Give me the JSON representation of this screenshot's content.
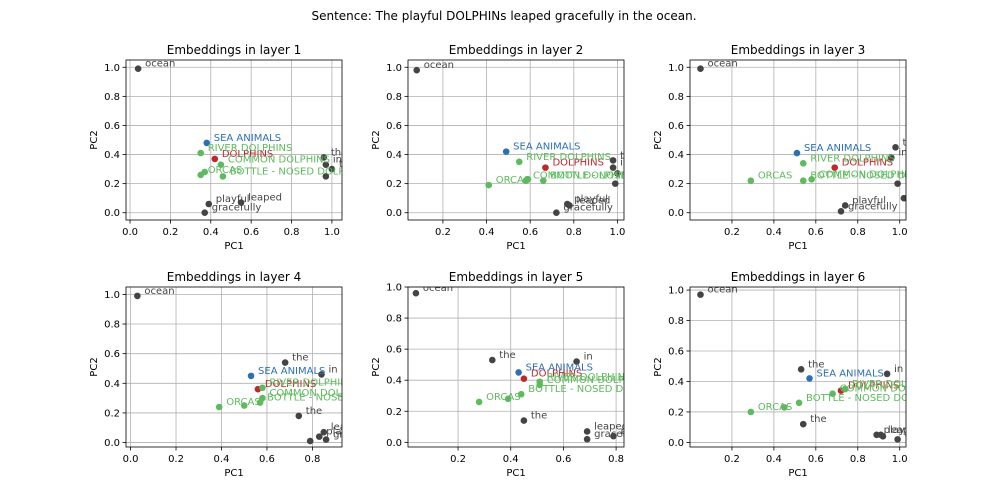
{
  "figure": {
    "suptitle": "Sentence: The playful DOLPHINs leaped gracefully in the ocean."
  },
  "colors": {
    "word": "#444444",
    "focus": "#c0272d",
    "sea_animals": "#2d6fb4",
    "related": "#5dba5d"
  },
  "chart_data": [
    {
      "type": "scatter",
      "title": "Embeddings in layer 1",
      "xlabel": "PC1",
      "ylabel": "PC2",
      "xlim": [
        -0.02,
        1.05
      ],
      "ylim": [
        -0.05,
        1.05
      ],
      "xticks": [
        "0.0",
        "0.2",
        "0.4",
        "0.6",
        "0.8",
        "1.0"
      ],
      "xtick_values": [
        0,
        0.2,
        0.4,
        0.6,
        0.8,
        1.0
      ],
      "yticks": [
        "0.0",
        "0.2",
        "0.4",
        "0.6",
        "0.8",
        "1.0"
      ],
      "ytick_values": [
        0,
        0.2,
        0.4,
        0.6,
        0.8,
        1.0
      ],
      "grid": true,
      "points": [
        {
          "label": "ocean",
          "group": "word",
          "x": 0.04,
          "y": 0.99
        },
        {
          "label": "the",
          "group": "word",
          "x": 0.96,
          "y": 0.38
        },
        {
          "label": "in",
          "group": "word",
          "x": 0.97,
          "y": 0.33
        },
        {
          "label": "the",
          "group": "word",
          "x": 1.0,
          "y": 0.3
        },
        {
          "label": "",
          "group": "word",
          "x": 0.97,
          "y": 0.25
        },
        {
          "label": "playful",
          "group": "word",
          "x": 0.39,
          "y": 0.06
        },
        {
          "label": "leaped",
          "group": "word",
          "x": 0.55,
          "y": 0.07
        },
        {
          "label": "gracefully",
          "group": "word",
          "x": 0.37,
          "y": 0.0
        },
        {
          "label": "SEA ANIMALS",
          "group": "sea_animals",
          "x": 0.38,
          "y": 0.48
        },
        {
          "label": "DOLPHINS",
          "group": "focus",
          "x": 0.42,
          "y": 0.37
        },
        {
          "label": "RIVER DOLPHINS",
          "group": "related",
          "x": 0.35,
          "y": 0.41
        },
        {
          "label": "COMMON DOLPHINS",
          "group": "related",
          "x": 0.45,
          "y": 0.33
        },
        {
          "label": "ORCAS",
          "group": "related",
          "x": 0.35,
          "y": 0.26
        },
        {
          "label": "",
          "group": "related",
          "x": 0.37,
          "y": 0.28
        },
        {
          "label": "BOTTLE - NOSED DOLPHINS",
          "group": "related",
          "x": 0.46,
          "y": 0.25
        }
      ]
    },
    {
      "type": "scatter",
      "title": "Embeddings in layer 2",
      "xlabel": "PC1",
      "ylabel": "PC2",
      "xlim": [
        0.04,
        1.03
      ],
      "ylim": [
        -0.05,
        1.05
      ],
      "xticks": [
        "0.2",
        "0.4",
        "0.6",
        "0.8",
        "1.0"
      ],
      "xtick_values": [
        0.2,
        0.4,
        0.6,
        0.8,
        1.0
      ],
      "yticks": [
        "0.0",
        "0.2",
        "0.4",
        "0.6",
        "0.8",
        "1.0"
      ],
      "ytick_values": [
        0,
        0.2,
        0.4,
        0.6,
        0.8,
        1.0
      ],
      "grid": true,
      "points": [
        {
          "label": "ocean",
          "group": "word",
          "x": 0.08,
          "y": 0.98
        },
        {
          "label": "the",
          "group": "word",
          "x": 0.98,
          "y": 0.36
        },
        {
          "label": "in",
          "group": "word",
          "x": 0.98,
          "y": 0.31
        },
        {
          "label": "the",
          "group": "word",
          "x": 1.0,
          "y": 0.27
        },
        {
          "label": "",
          "group": "word",
          "x": 0.99,
          "y": 0.2
        },
        {
          "label": "playful",
          "group": "word",
          "x": 0.77,
          "y": 0.06
        },
        {
          "label": "leaped",
          "group": "word",
          "x": 0.78,
          "y": 0.05
        },
        {
          "label": "gracefully",
          "group": "word",
          "x": 0.72,
          "y": 0.0
        },
        {
          "label": "SEA ANIMALS",
          "group": "sea_animals",
          "x": 0.49,
          "y": 0.42
        },
        {
          "label": "DOLPHINS",
          "group": "focus",
          "x": 0.67,
          "y": 0.31
        },
        {
          "label": "RIVER DOLPHINS",
          "group": "related",
          "x": 0.55,
          "y": 0.35
        },
        {
          "label": "COMMON DOLPHINS",
          "group": "related",
          "x": 0.58,
          "y": 0.22
        },
        {
          "label": "ORCAS",
          "group": "related",
          "x": 0.41,
          "y": 0.19
        },
        {
          "label": "",
          "group": "related",
          "x": 0.59,
          "y": 0.23
        },
        {
          "label": "BOTTLE - NOSED DOLPHINS",
          "group": "related",
          "x": 0.66,
          "y": 0.22
        }
      ]
    },
    {
      "type": "scatter",
      "title": "Embeddings in layer 3",
      "xlabel": "PC1",
      "ylabel": "PC2",
      "xlim": [
        0.0,
        1.03
      ],
      "ylim": [
        -0.05,
        1.05
      ],
      "xticks": [
        "0.2",
        "0.4",
        "0.6",
        "0.8",
        "1.0"
      ],
      "xtick_values": [
        0.2,
        0.4,
        0.6,
        0.8,
        1.0
      ],
      "yticks": [
        "0.0",
        "0.2",
        "0.4",
        "0.6",
        "0.8",
        "1.0"
      ],
      "ytick_values": [
        0,
        0.2,
        0.4,
        0.6,
        0.8,
        1.0
      ],
      "grid": true,
      "points": [
        {
          "label": "ocean",
          "group": "word",
          "x": 0.05,
          "y": 0.99
        },
        {
          "label": "the",
          "group": "word",
          "x": 0.98,
          "y": 0.45
        },
        {
          "label": "in",
          "group": "word",
          "x": 0.96,
          "y": 0.38
        },
        {
          "label": "the",
          "group": "word",
          "x": 0.99,
          "y": 0.2
        },
        {
          "label": "playful",
          "group": "word",
          "x": 0.74,
          "y": 0.05
        },
        {
          "label": "leaped",
          "group": "word",
          "x": 1.02,
          "y": 0.1
        },
        {
          "label": "gracefully",
          "group": "word",
          "x": 0.72,
          "y": 0.01
        },
        {
          "label": "SEA ANIMALS",
          "group": "sea_animals",
          "x": 0.51,
          "y": 0.41
        },
        {
          "label": "DOLPHINS",
          "group": "focus",
          "x": 0.69,
          "y": 0.31
        },
        {
          "label": "RIVER DOLPHINS",
          "group": "related",
          "x": 0.54,
          "y": 0.34
        },
        {
          "label": "ORCAS",
          "group": "related",
          "x": 0.29,
          "y": 0.22
        },
        {
          "label": "BOTTLE - NOSED DOLPHINS",
          "group": "related",
          "x": 0.54,
          "y": 0.22
        },
        {
          "label": "COMMON DOLPHINS",
          "group": "related",
          "x": 0.58,
          "y": 0.23
        }
      ]
    },
    {
      "type": "scatter",
      "title": "Embeddings in layer 4",
      "xlabel": "PC1",
      "ylabel": "PC2",
      "xlim": [
        -0.02,
        0.93
      ],
      "ylim": [
        -0.03,
        1.05
      ],
      "xticks": [
        "0.0",
        "0.2",
        "0.4",
        "0.6",
        "0.8"
      ],
      "xtick_values": [
        0,
        0.2,
        0.4,
        0.6,
        0.8
      ],
      "yticks": [
        "0.0",
        "0.2",
        "0.4",
        "0.6",
        "0.8",
        "1.0"
      ],
      "ytick_values": [
        0,
        0.2,
        0.4,
        0.6,
        0.8,
        1.0
      ],
      "grid": true,
      "points": [
        {
          "label": "ocean",
          "group": "word",
          "x": 0.03,
          "y": 0.99
        },
        {
          "label": "the",
          "group": "word",
          "x": 0.68,
          "y": 0.54
        },
        {
          "label": "in",
          "group": "word",
          "x": 0.84,
          "y": 0.46
        },
        {
          "label": "the",
          "group": "word",
          "x": 0.74,
          "y": 0.18
        },
        {
          "label": "leaped",
          "group": "word",
          "x": 0.85,
          "y": 0.07
        },
        {
          "label": "playful",
          "group": "word",
          "x": 0.83,
          "y": 0.04
        },
        {
          "label": "gracefully",
          "group": "word",
          "x": 0.86,
          "y": 0.02
        },
        {
          "label": "",
          "group": "word",
          "x": 0.79,
          "y": 0.01
        },
        {
          "label": "SEA ANIMALS",
          "group": "sea_animals",
          "x": 0.53,
          "y": 0.45
        },
        {
          "label": "DOLPHINS",
          "group": "focus",
          "x": 0.56,
          "y": 0.36
        },
        {
          "label": "RIVER DOLPHINS",
          "group": "related",
          "x": 0.58,
          "y": 0.37
        },
        {
          "label": "COMMON DOLPHINS",
          "group": "related",
          "x": 0.58,
          "y": 0.3
        },
        {
          "label": "ORCAS",
          "group": "related",
          "x": 0.39,
          "y": 0.24
        },
        {
          "label": "",
          "group": "related",
          "x": 0.5,
          "y": 0.25
        },
        {
          "label": "BOTTLE - NOSED DOLPHINS",
          "group": "related",
          "x": 0.57,
          "y": 0.27
        }
      ]
    },
    {
      "type": "scatter",
      "title": "Embeddings in layer 5",
      "xlabel": "PC1",
      "ylabel": "PC2",
      "xlim": [
        0.01,
        0.83
      ],
      "ylim": [
        -0.03,
        1.0
      ],
      "xticks": [
        "0.2",
        "0.4",
        "0.6",
        "0.8"
      ],
      "xtick_values": [
        0.2,
        0.4,
        0.6,
        0.8
      ],
      "yticks": [
        "0.0",
        "0.2",
        "0.4",
        "0.6",
        "0.8",
        "1.0"
      ],
      "ytick_values": [
        0,
        0.2,
        0.4,
        0.6,
        0.8,
        1.0
      ],
      "grid": true,
      "points": [
        {
          "label": "ocean",
          "group": "word",
          "x": 0.04,
          "y": 0.96
        },
        {
          "label": "the",
          "group": "word",
          "x": 0.33,
          "y": 0.53
        },
        {
          "label": "in",
          "group": "word",
          "x": 0.65,
          "y": 0.52
        },
        {
          "label": "the",
          "group": "word",
          "x": 0.45,
          "y": 0.14
        },
        {
          "label": "leaped",
          "group": "word",
          "x": 0.69,
          "y": 0.07
        },
        {
          "label": "playful",
          "group": "word",
          "x": 0.79,
          "y": 0.04
        },
        {
          "label": "gracefully",
          "group": "word",
          "x": 0.69,
          "y": 0.02
        },
        {
          "label": "SEA ANIMALS",
          "group": "sea_animals",
          "x": 0.43,
          "y": 0.45
        },
        {
          "label": "DOLPHINS",
          "group": "focus",
          "x": 0.45,
          "y": 0.41
        },
        {
          "label": "RIVER DOLPHINS",
          "group": "related",
          "x": 0.51,
          "y": 0.39
        },
        {
          "label": "COMMON DOLPHINS",
          "group": "related",
          "x": 0.51,
          "y": 0.37
        },
        {
          "label": "ORCAS",
          "group": "related",
          "x": 0.28,
          "y": 0.26
        },
        {
          "label": "",
          "group": "related",
          "x": 0.39,
          "y": 0.28
        },
        {
          "label": "BOTTLE - NOSED DOLPHINS",
          "group": "related",
          "x": 0.44,
          "y": 0.31
        }
      ]
    },
    {
      "type": "scatter",
      "title": "Embeddings in layer 6",
      "xlabel": "PC1",
      "ylabel": "PC2",
      "xlim": [
        0.0,
        1.03
      ],
      "ylim": [
        -0.03,
        1.02
      ],
      "xticks": [
        "0.2",
        "0.4",
        "0.6",
        "0.8",
        "1.0"
      ],
      "xtick_values": [
        0.2,
        0.4,
        0.6,
        0.8,
        1.0
      ],
      "yticks": [
        "0.0",
        "0.2",
        "0.4",
        "0.6",
        "0.8",
        "1.0"
      ],
      "ytick_values": [
        0,
        0.2,
        0.4,
        0.6,
        0.8,
        1.0
      ],
      "grid": true,
      "points": [
        {
          "label": "ocean",
          "group": "word",
          "x": 0.05,
          "y": 0.97
        },
        {
          "label": "the",
          "group": "word",
          "x": 0.53,
          "y": 0.48
        },
        {
          "label": "in",
          "group": "word",
          "x": 0.94,
          "y": 0.45
        },
        {
          "label": "the",
          "group": "word",
          "x": 0.54,
          "y": 0.12
        },
        {
          "label": "playful",
          "group": "word",
          "x": 0.89,
          "y": 0.05
        },
        {
          "label": "leaped",
          "group": "word",
          "x": 0.91,
          "y": 0.05
        },
        {
          "label": "gracefully",
          "group": "word",
          "x": 0.99,
          "y": 0.02
        },
        {
          "label": "",
          "group": "word",
          "x": 0.92,
          "y": 0.04
        },
        {
          "label": "SEA ANIMALS",
          "group": "sea_animals",
          "x": 0.57,
          "y": 0.42
        },
        {
          "label": "DOLPHINS",
          "group": "focus",
          "x": 0.72,
          "y": 0.34
        },
        {
          "label": "RIVER DOLPHINS",
          "group": "related",
          "x": 0.74,
          "y": 0.35
        },
        {
          "label": "COMMON DOLPHINS",
          "group": "related",
          "x": 0.68,
          "y": 0.32
        },
        {
          "label": "ORCAS",
          "group": "related",
          "x": 0.29,
          "y": 0.2
        },
        {
          "label": "",
          "group": "related",
          "x": 0.45,
          "y": 0.23
        },
        {
          "label": "BOTTLE - NOSED DOLPHINS",
          "group": "related",
          "x": 0.52,
          "y": 0.26
        }
      ]
    }
  ]
}
